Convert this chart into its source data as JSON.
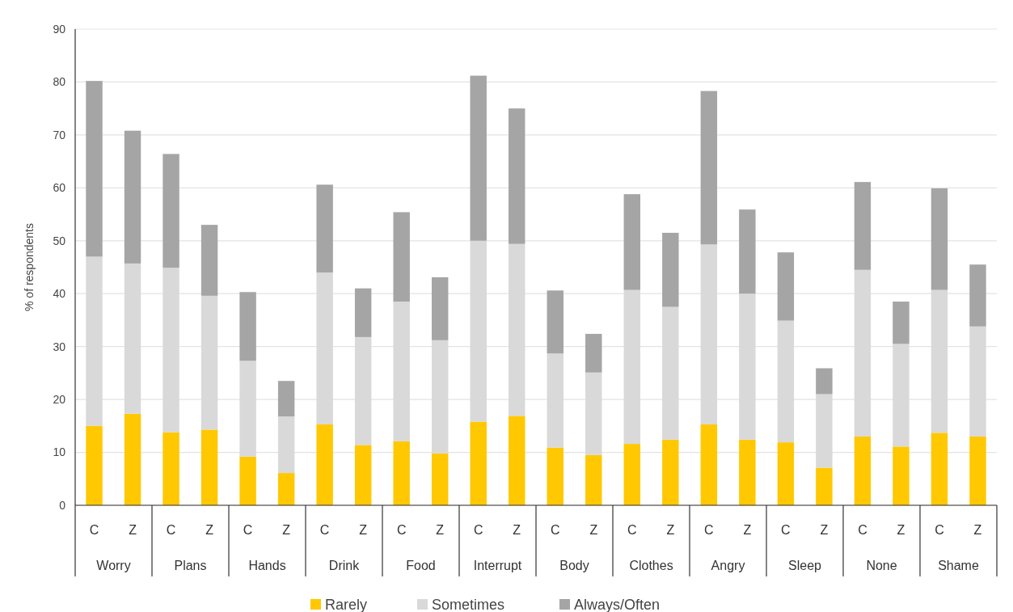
{
  "chart_data": {
    "type": "bar",
    "stacked": true,
    "ylabel": "% of respondents",
    "categories": [
      "C",
      "Z",
      "C",
      "Z",
      "C",
      "Z",
      "C",
      "Z",
      "C",
      "Z",
      "C",
      "Z",
      "C",
      "Z",
      "C",
      "Z",
      "C",
      "Z",
      "C",
      "Z",
      "C",
      "Z",
      "C",
      "Z"
    ],
    "annotations": [
      "Worry",
      "Plans",
      "Hands",
      "Drink",
      "Food",
      "Interrupt",
      "Body",
      "Clothes",
      "Angry",
      "Sleep",
      "None",
      "Shame"
    ],
    "series": [
      {
        "name": "Rarely",
        "color": "#ffc800",
        "values": [
          15,
          17.3,
          13.8,
          14.3,
          9.2,
          6.1,
          15.3,
          11.4,
          12.1,
          9.8,
          15.8,
          16.9,
          10.9,
          9.5,
          11.6,
          12.4,
          15.3,
          12.4,
          11.9,
          7.1,
          13,
          11.1,
          13.7,
          13
        ]
      },
      {
        "name": "Sometimes",
        "color": "#d9d9d9",
        "values": [
          32,
          28.4,
          31.1,
          25.3,
          18.1,
          10.7,
          28.7,
          20.4,
          26.4,
          21.4,
          34.2,
          32.5,
          17.8,
          15.6,
          29.1,
          25.1,
          34,
          27.6,
          23,
          13.9,
          31.5,
          19.4,
          27,
          20.8
        ]
      },
      {
        "name": "Always/Often",
        "color": "#a5a5a5",
        "values": [
          33.2,
          25.1,
          21.5,
          13.4,
          13,
          6.7,
          16.6,
          9.2,
          16.9,
          11.9,
          31.2,
          25.6,
          11.9,
          7.3,
          18.1,
          14,
          29,
          15.9,
          12.9,
          4.9,
          16.6,
          8,
          19.2,
          11.7
        ]
      }
    ],
    "ylim": [
      0,
      90
    ],
    "yticks": [
      0,
      10,
      20,
      30,
      40,
      50,
      60,
      70,
      80,
      90
    ],
    "grid": "y",
    "legend": "bottom"
  }
}
